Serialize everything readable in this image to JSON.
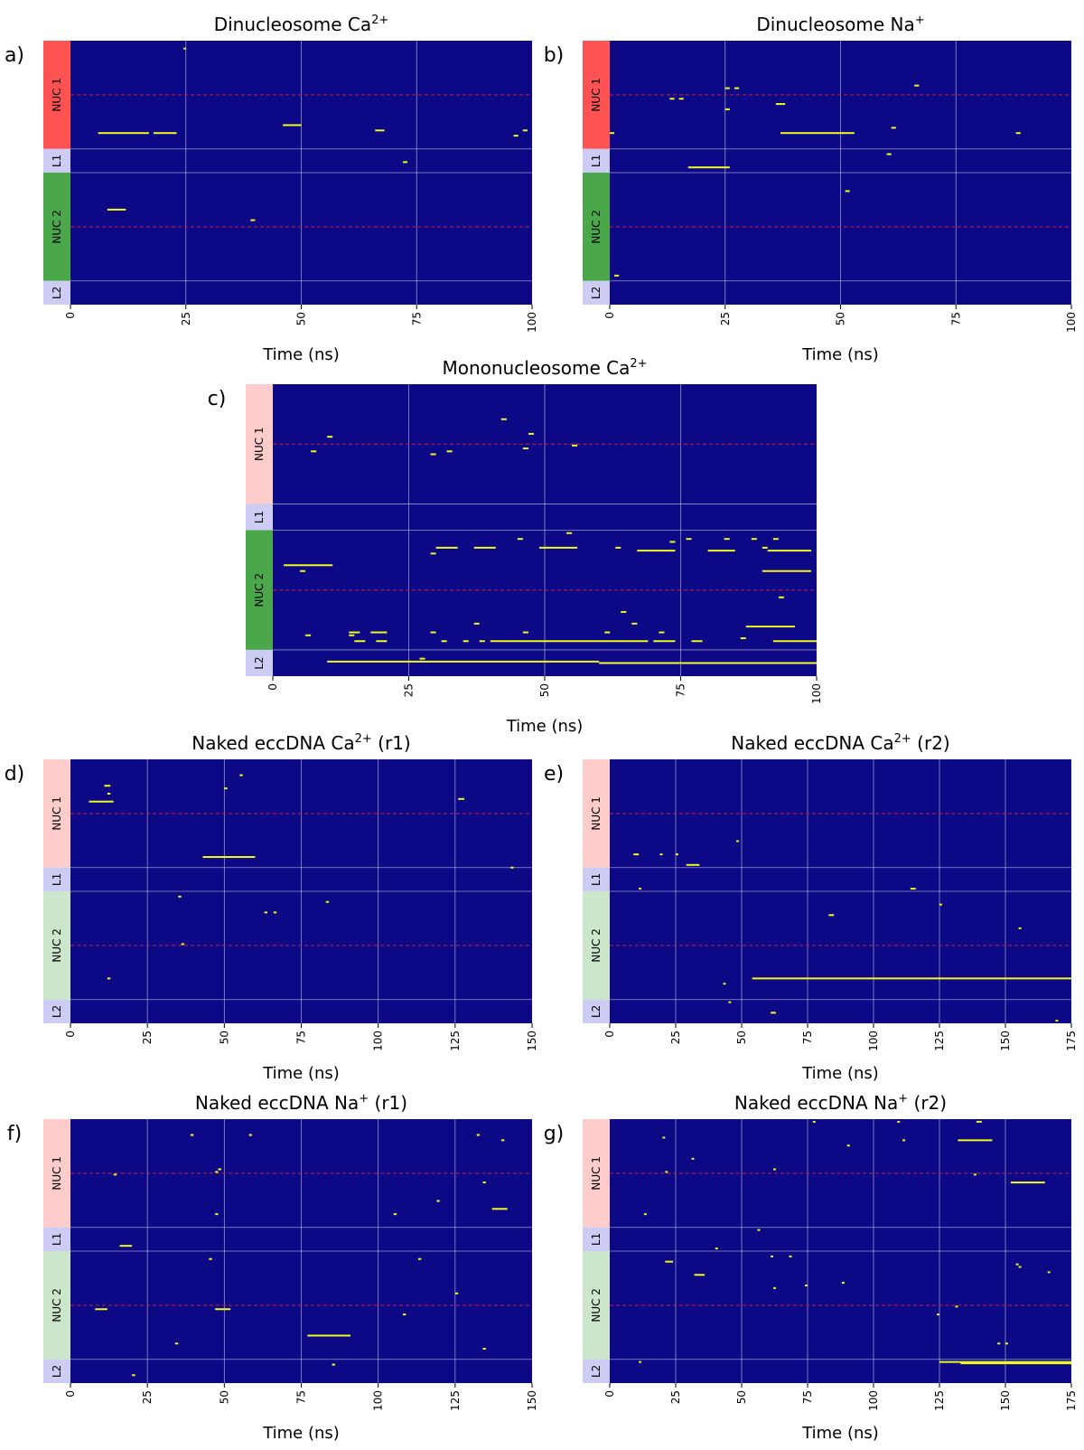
{
  "figure": {
    "colors": {
      "background": "#0c0886",
      "event": "#f0f921",
      "grid": "#b8b8d8",
      "midline": "#c81e3c",
      "nuc_red": "#ff5252",
      "nuc_green": "#4aa84a",
      "nuc_pink": "#ffcccc",
      "nuc_lightgreen": "#cce6cc",
      "linker": "#ccccf5"
    },
    "region_labels": [
      "NUC 1",
      "L1",
      "NUC 2",
      "L2"
    ]
  },
  "chart_data": [
    {
      "panel": "a)",
      "type": "heatmap",
      "title_main": "Dinucleosome Ca",
      "title_sup": "2+",
      "title_tail": "",
      "xlabel": "Time (ns)",
      "xlim": [
        0,
        100
      ],
      "xticks": [
        0,
        25,
        50,
        75,
        100
      ],
      "regions": [
        {
          "label": "NUC 1",
          "color": "nuc_red"
        },
        {
          "label": "L1",
          "color": "linker"
        },
        {
          "label": "NUC 2",
          "color": "nuc_green"
        },
        {
          "label": "L2",
          "color": "linker"
        }
      ],
      "events": [
        [
          24.5,
          25,
          0.03
        ],
        [
          6,
          17,
          0.35
        ],
        [
          18,
          23,
          0.35
        ],
        [
          46,
          50,
          0.32
        ],
        [
          66,
          68,
          0.34
        ],
        [
          96,
          97,
          0.36
        ],
        [
          98,
          99,
          0.34
        ],
        [
          72,
          73,
          0.46
        ],
        [
          8,
          12,
          0.64
        ],
        [
          39,
          40,
          0.68
        ]
      ]
    },
    {
      "panel": "b)",
      "type": "heatmap",
      "title_main": "Dinucleosome Na",
      "title_sup": "+",
      "title_tail": "",
      "xlabel": "Time (ns)",
      "xlim": [
        0,
        100
      ],
      "xticks": [
        0,
        25,
        50,
        75,
        100
      ],
      "regions": [
        {
          "label": "NUC 1",
          "color": "nuc_red"
        },
        {
          "label": "L1",
          "color": "linker"
        },
        {
          "label": "NUC 2",
          "color": "nuc_green"
        },
        {
          "label": "L2",
          "color": "linker"
        }
      ],
      "events": [
        [
          25,
          26,
          0.18
        ],
        [
          27,
          28,
          0.18
        ],
        [
          66,
          67,
          0.17
        ],
        [
          13,
          14,
          0.22
        ],
        [
          15,
          16,
          0.22
        ],
        [
          36,
          38,
          0.24
        ],
        [
          25,
          26,
          0.26
        ],
        [
          61,
          62,
          0.33
        ],
        [
          0,
          1,
          0.35
        ],
        [
          37,
          53,
          0.35
        ],
        [
          88,
          89,
          0.35
        ],
        [
          60,
          61,
          0.43
        ],
        [
          17,
          26,
          0.48
        ],
        [
          51,
          52,
          0.57
        ],
        [
          1,
          2,
          0.89
        ]
      ]
    },
    {
      "panel": "c)",
      "type": "heatmap",
      "title_main": "Mononucleosome Ca",
      "title_sup": "2+",
      "title_tail": "",
      "xlabel": "Time (ns)",
      "xlim": [
        0,
        100
      ],
      "xticks": [
        0,
        25,
        50,
        75,
        100
      ],
      "regions": [
        {
          "label": "NUC 1",
          "color": "nuc_pink"
        },
        {
          "label": "L1",
          "color": "linker"
        },
        {
          "label": "NUC 2",
          "color": "nuc_green"
        },
        {
          "label": "L2",
          "color": "linker"
        }
      ],
      "events": [
        [
          42,
          43,
          0.12
        ],
        [
          47,
          48,
          0.17
        ],
        [
          10,
          11,
          0.18
        ],
        [
          46,
          47,
          0.22
        ],
        [
          55,
          56,
          0.21
        ],
        [
          7,
          8,
          0.23
        ],
        [
          32,
          33,
          0.23
        ],
        [
          29,
          30,
          0.24
        ],
        [
          54,
          55,
          0.51
        ],
        [
          45,
          46,
          0.53
        ],
        [
          73,
          74,
          0.54
        ],
        [
          76,
          77,
          0.53
        ],
        [
          83,
          84,
          0.53
        ],
        [
          88,
          89,
          0.53
        ],
        [
          92,
          93,
          0.53
        ],
        [
          29,
          30,
          0.58
        ],
        [
          30,
          34,
          0.56
        ],
        [
          37,
          41,
          0.56
        ],
        [
          49,
          56,
          0.56
        ],
        [
          63,
          64,
          0.56
        ],
        [
          67,
          74,
          0.57
        ],
        [
          80,
          85,
          0.57
        ],
        [
          90,
          91,
          0.56
        ],
        [
          91,
          99,
          0.57
        ],
        [
          2,
          11,
          0.62
        ],
        [
          5,
          6,
          0.64
        ],
        [
          90,
          99,
          0.64
        ],
        [
          93,
          94,
          0.73
        ],
        [
          64,
          65,
          0.78
        ],
        [
          37,
          38,
          0.82
        ],
        [
          66,
          67,
          0.82
        ],
        [
          87,
          96,
          0.83
        ],
        [
          14,
          16,
          0.85
        ],
        [
          18,
          21,
          0.85
        ],
        [
          29,
          30,
          0.85
        ],
        [
          46,
          47,
          0.85
        ],
        [
          61,
          62,
          0.85
        ],
        [
          71,
          72,
          0.85
        ],
        [
          6,
          7,
          0.86
        ],
        [
          14,
          15,
          0.86
        ],
        [
          15,
          17,
          0.88
        ],
        [
          19,
          21,
          0.88
        ],
        [
          31,
          32,
          0.88
        ],
        [
          35,
          36,
          0.88
        ],
        [
          38,
          39,
          0.88
        ],
        [
          40,
          44,
          0.88
        ],
        [
          44,
          46,
          0.88
        ],
        [
          46,
          69,
          0.88
        ],
        [
          70,
          74,
          0.88
        ],
        [
          77,
          79,
          0.88
        ],
        [
          86,
          87,
          0.87
        ],
        [
          92,
          100,
          0.88
        ],
        [
          27,
          28,
          0.94
        ],
        [
          10,
          60,
          0.95
        ],
        [
          60,
          100,
          0.955
        ]
      ]
    },
    {
      "panel": "d)",
      "type": "heatmap",
      "title_main": "Naked eccDNA Ca",
      "title_sup": "2+",
      "title_tail": " (r1)",
      "xlabel": "Time (ns)",
      "xlim": [
        0,
        150
      ],
      "xticks": [
        0,
        25,
        50,
        75,
        100,
        125,
        150
      ],
      "regions": [
        {
          "label": "NUC 1",
          "color": "nuc_pink"
        },
        {
          "label": "L1",
          "color": "linker"
        },
        {
          "label": "NUC 2",
          "color": "nuc_lightgreen"
        },
        {
          "label": "L2",
          "color": "linker"
        }
      ],
      "events": [
        [
          55,
          56,
          0.06
        ],
        [
          11,
          13,
          0.1
        ],
        [
          12,
          13,
          0.13
        ],
        [
          6,
          14,
          0.16
        ],
        [
          50,
          51,
          0.11
        ],
        [
          126,
          128,
          0.15
        ],
        [
          43,
          60,
          0.37
        ],
        [
          143,
          144,
          0.41
        ],
        [
          35,
          36,
          0.52
        ],
        [
          63,
          64,
          0.58
        ],
        [
          66,
          67,
          0.58
        ],
        [
          83,
          84,
          0.54
        ],
        [
          36,
          37,
          0.7
        ],
        [
          12,
          13,
          0.83
        ]
      ]
    },
    {
      "panel": "e)",
      "type": "heatmap",
      "title_main": "Naked eccDNA Ca",
      "title_sup": "2+",
      "title_tail": " (r2)",
      "xlabel": "Time (ns)",
      "xlim": [
        0,
        175
      ],
      "xticks": [
        0,
        25,
        50,
        75,
        100,
        125,
        150,
        175
      ],
      "regions": [
        {
          "label": "NUC 1",
          "color": "nuc_pink"
        },
        {
          "label": "L1",
          "color": "linker"
        },
        {
          "label": "NUC 2",
          "color": "nuc_lightgreen"
        },
        {
          "label": "L2",
          "color": "linker"
        }
      ],
      "events": [
        [
          48,
          49,
          0.31
        ],
        [
          9,
          11,
          0.36
        ],
        [
          19,
          20,
          0.36
        ],
        [
          25,
          26,
          0.36
        ],
        [
          29,
          34,
          0.4
        ],
        [
          11,
          12,
          0.49
        ],
        [
          114,
          116,
          0.49
        ],
        [
          125,
          126,
          0.55
        ],
        [
          83,
          85,
          0.59
        ],
        [
          155,
          156,
          0.64
        ],
        [
          54,
          175,
          0.83
        ],
        [
          43,
          44,
          0.85
        ],
        [
          45,
          46,
          0.92
        ],
        [
          61,
          63,
          0.96
        ],
        [
          169,
          170,
          0.99
        ]
      ]
    },
    {
      "panel": "f)",
      "type": "heatmap",
      "title_main": "Naked eccDNA Na",
      "title_sup": "+",
      "title_tail": " (r1)",
      "xlabel": "Time (ns)",
      "xlim": [
        0,
        150
      ],
      "xticks": [
        0,
        25,
        50,
        75,
        100,
        125,
        150
      ],
      "regions": [
        {
          "label": "NUC 1",
          "color": "nuc_pink"
        },
        {
          "label": "L1",
          "color": "linker"
        },
        {
          "label": "NUC 2",
          "color": "nuc_lightgreen"
        },
        {
          "label": "L2",
          "color": "linker"
        }
      ],
      "events": [
        [
          39,
          40,
          0.06
        ],
        [
          58,
          59,
          0.06
        ],
        [
          132,
          133,
          0.06
        ],
        [
          140,
          141,
          0.08
        ],
        [
          48,
          49,
          0.19
        ],
        [
          47,
          48,
          0.2
        ],
        [
          14,
          15,
          0.21
        ],
        [
          134,
          135,
          0.24
        ],
        [
          119,
          120,
          0.31
        ],
        [
          137,
          142,
          0.34
        ],
        [
          47,
          48,
          0.36
        ],
        [
          105,
          106,
          0.36
        ],
        [
          16,
          20,
          0.48
        ],
        [
          45,
          46,
          0.53
        ],
        [
          113,
          114,
          0.53
        ],
        [
          125,
          126,
          0.66
        ],
        [
          8,
          12,
          0.72
        ],
        [
          47,
          52,
          0.72
        ],
        [
          108,
          109,
          0.74
        ],
        [
          77,
          91,
          0.82
        ],
        [
          34,
          35,
          0.85
        ],
        [
          134,
          135,
          0.87
        ],
        [
          85,
          86,
          0.93
        ],
        [
          20,
          21,
          0.97
        ]
      ]
    },
    {
      "panel": "g)",
      "type": "heatmap",
      "title_main": "Naked eccDNA Na",
      "title_sup": "+",
      "title_tail": " (r2)",
      "xlabel": "Time (ns)",
      "xlim": [
        0,
        175
      ],
      "xticks": [
        0,
        25,
        50,
        75,
        100,
        125,
        150,
        175
      ],
      "regions": [
        {
          "label": "NUC 1",
          "color": "nuc_pink"
        },
        {
          "label": "L1",
          "color": "linker"
        },
        {
          "label": "NUC 2",
          "color": "nuc_lightgreen"
        },
        {
          "label": "L2",
          "color": "linker"
        }
      ],
      "events": [
        [
          77,
          78,
          0.01
        ],
        [
          109,
          110,
          0.01
        ],
        [
          139,
          141,
          0.01
        ],
        [
          90,
          91,
          0.1
        ],
        [
          111,
          112,
          0.08
        ],
        [
          132,
          145,
          0.08
        ],
        [
          20,
          21,
          0.07
        ],
        [
          31,
          32,
          0.15
        ],
        [
          21,
          22,
          0.2
        ],
        [
          62,
          63,
          0.19
        ],
        [
          138,
          139,
          0.21
        ],
        [
          152,
          165,
          0.24
        ],
        [
          13,
          14,
          0.36
        ],
        [
          56,
          57,
          0.42
        ],
        [
          40,
          41,
          0.49
        ],
        [
          21,
          24,
          0.54
        ],
        [
          61,
          62,
          0.52
        ],
        [
          68,
          69,
          0.52
        ],
        [
          154,
          155,
          0.55
        ],
        [
          155,
          156,
          0.56
        ],
        [
          166,
          167,
          0.58
        ],
        [
          32,
          36,
          0.59
        ],
        [
          88,
          89,
          0.62
        ],
        [
          74,
          75,
          0.63
        ],
        [
          62,
          63,
          0.64
        ],
        [
          124,
          125,
          0.74
        ],
        [
          131,
          132,
          0.71
        ],
        [
          147,
          148,
          0.85
        ],
        [
          150,
          151,
          0.85
        ],
        [
          11,
          12,
          0.92
        ],
        [
          125,
          175,
          0.92
        ],
        [
          133,
          175,
          0.925
        ]
      ]
    }
  ]
}
